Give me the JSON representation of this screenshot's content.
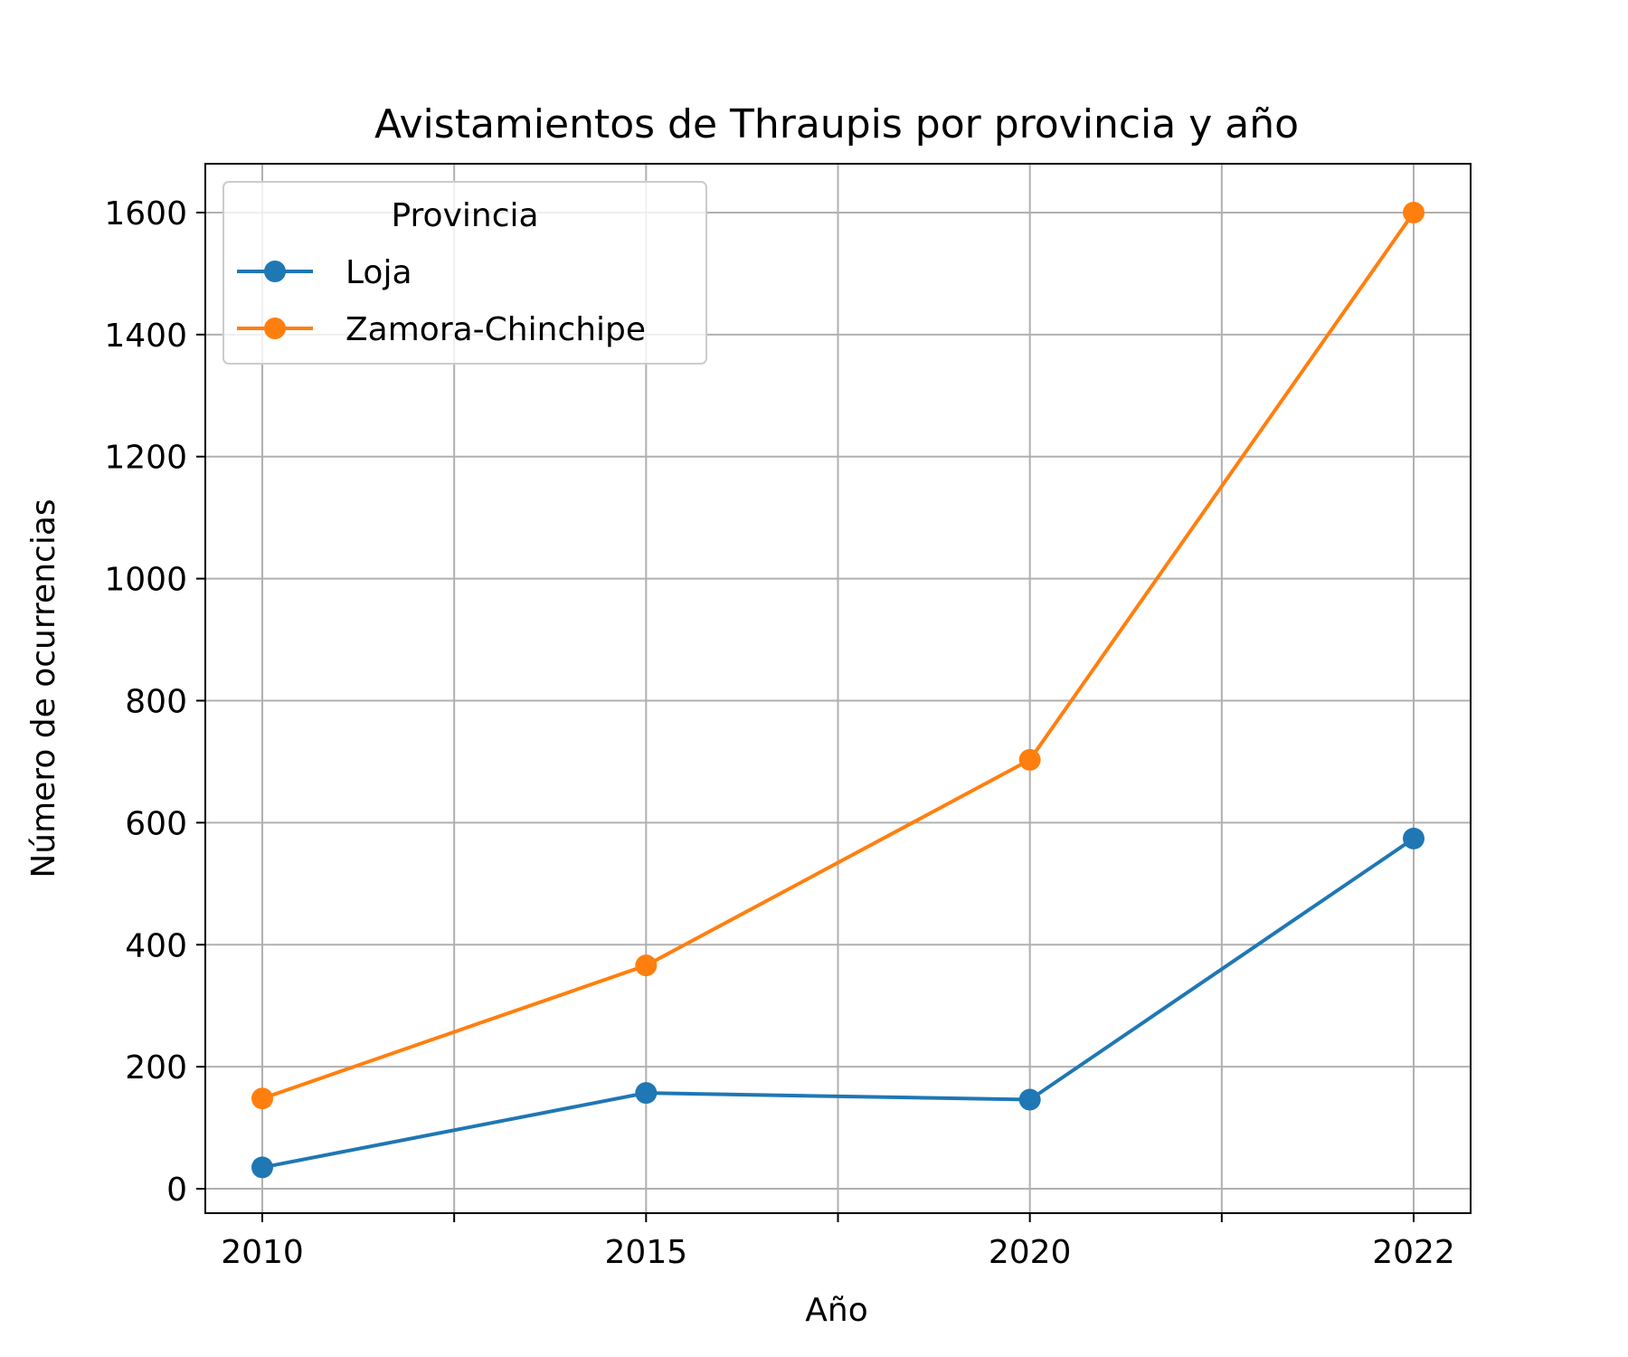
{
  "chart_data": {
    "type": "line",
    "title": "Avistamientos de Thraupis por provincia y año",
    "xlabel": "Año",
    "ylabel": "Número de ocurrencias",
    "x": [
      "2010",
      "2015",
      "2020",
      "2022"
    ],
    "ylim": [
      -40,
      1680
    ],
    "yticks": [
      0,
      200,
      400,
      600,
      800,
      1000,
      1200,
      1400,
      1600
    ],
    "ytick_labels": [
      "0",
      "200",
      "400",
      "600",
      "800",
      "1000",
      "1200",
      "1400",
      "1600"
    ],
    "grid": true,
    "legend": {
      "title": "Provincia",
      "placement": "top-left"
    },
    "series": [
      {
        "name": "Loja",
        "color": "#1f77b4",
        "values": [
          35,
          157,
          146,
          574
        ]
      },
      {
        "name": "Zamora-Chinchipe",
        "color": "#ff7f0e",
        "values": [
          148,
          366,
          703,
          1600
        ]
      }
    ]
  }
}
